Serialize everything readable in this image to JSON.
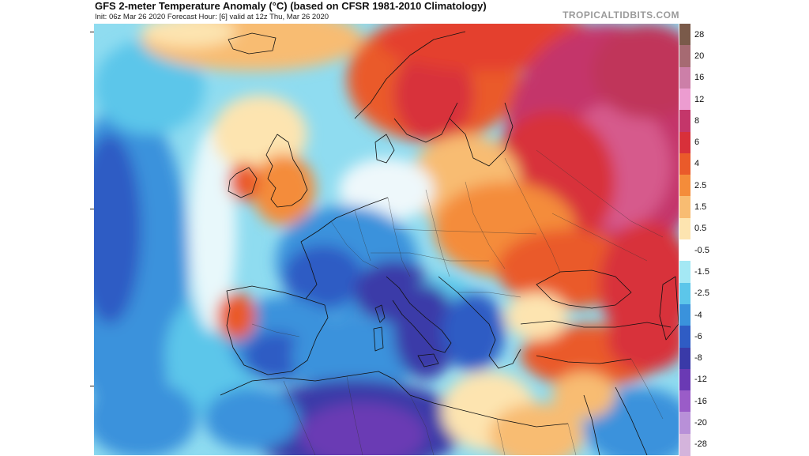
{
  "header": {
    "title": "GFS 2-meter Temperature Anomaly (°C) (based on CFSR 1981-2010 Climatology)",
    "subtitle": "Init: 06z Mar 26 2020   Forecast Hour: [6]   valid at 12z Thu, Mar 26 2020",
    "brand": "TROPICALTIDBITS.COM"
  },
  "legend": {
    "entries": [
      {
        "label": "28",
        "color": "#7a5a4a"
      },
      {
        "label": "20",
        "color": "#a66a72"
      },
      {
        "label": "16",
        "color": "#cc7fa8"
      },
      {
        "label": "12",
        "color": "#ec9cd0"
      },
      {
        "label": "8",
        "color": "#c4366a"
      },
      {
        "label": "6",
        "color": "#d8303a"
      },
      {
        "label": "4",
        "color": "#ea5a2a"
      },
      {
        "label": "2.5",
        "color": "#f48c3a"
      },
      {
        "label": "1.5",
        "color": "#f8bc72"
      },
      {
        "label": "0.5",
        "color": "#fde4b0"
      },
      {
        "label": "-0.5",
        "color": "#ffffff"
      },
      {
        "label": "-1.5",
        "color": "#a4e8f4"
      },
      {
        "label": "-2.5",
        "color": "#5cc6ea"
      },
      {
        "label": "-4",
        "color": "#3a92dc"
      },
      {
        "label": "-6",
        "color": "#2f5cc4"
      },
      {
        "label": "-8",
        "color": "#3a3aa8"
      },
      {
        "label": "-12",
        "color": "#6a3ab4"
      },
      {
        "label": "-16",
        "color": "#9a5cc8"
      },
      {
        "label": "-20",
        "color": "#b890d8"
      },
      {
        "label": "-28",
        "color": "#d4b4dc"
      }
    ]
  }
}
